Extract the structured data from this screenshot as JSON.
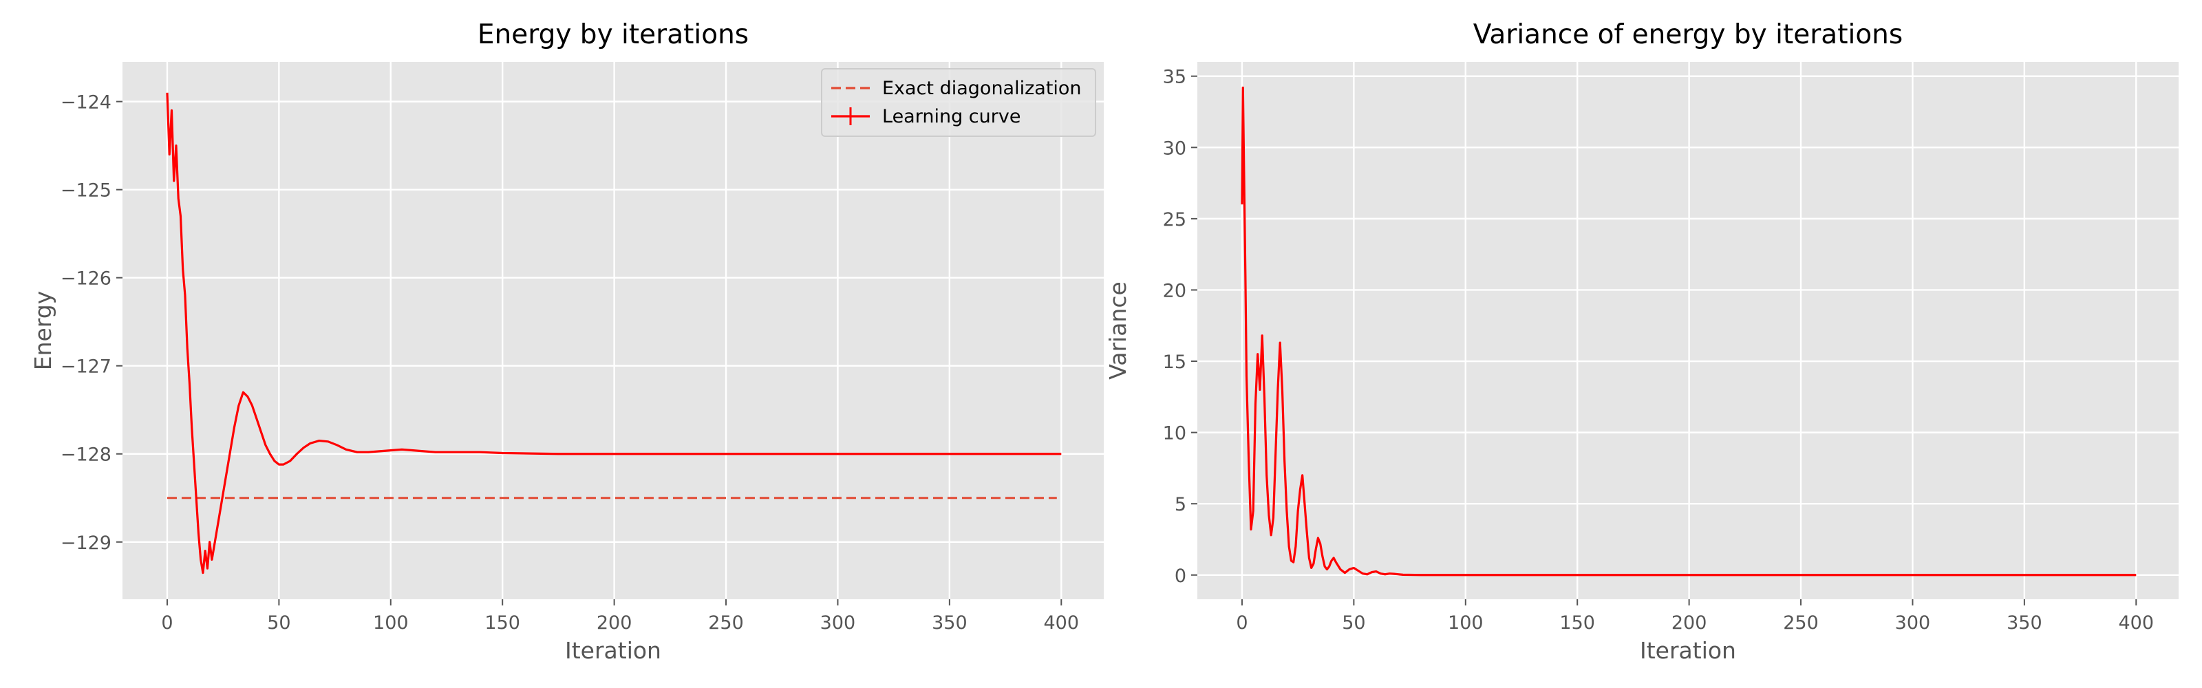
{
  "chart_data": [
    {
      "type": "line",
      "title": "Energy by iterations",
      "xlabel": "Iteration",
      "ylabel": "Energy",
      "xlim": [
        -20,
        419
      ],
      "ylim": [
        -129.65,
        -123.55
      ],
      "xticks": [
        0,
        50,
        100,
        150,
        200,
        250,
        300,
        350,
        400
      ],
      "yticks": [
        -129,
        -128,
        -127,
        -126,
        -125,
        -124
      ],
      "ytick_labels": [
        "−129",
        "−128",
        "−127",
        "−126",
        "−125",
        "−124"
      ],
      "grid": true,
      "legend_position": "top-right",
      "series": [
        {
          "name": "Exact diagonalization",
          "style": "dashed",
          "color": "#e24a33",
          "points": [
            [
              0,
              -128.5
            ],
            [
              398,
              -128.5
            ]
          ]
        },
        {
          "name": "Learning curve",
          "style": "solid-with-errorbars",
          "color": "#ff0000",
          "points": [
            [
              0,
              -123.9
            ],
            [
              1,
              -124.6
            ],
            [
              2,
              -124.1
            ],
            [
              3,
              -124.9
            ],
            [
              4,
              -124.5
            ],
            [
              5,
              -125.1
            ],
            [
              6,
              -125.3
            ],
            [
              7,
              -125.9
            ],
            [
              8,
              -126.2
            ],
            [
              9,
              -126.8
            ],
            [
              10,
              -127.2
            ],
            [
              11,
              -127.7
            ],
            [
              12,
              -128.1
            ],
            [
              13,
              -128.5
            ],
            [
              14,
              -128.9
            ],
            [
              15,
              -129.2
            ],
            [
              16,
              -129.35
            ],
            [
              17,
              -129.1
            ],
            [
              18,
              -129.3
            ],
            [
              19,
              -129.0
            ],
            [
              20,
              -129.2
            ],
            [
              22,
              -128.9
            ],
            [
              24,
              -128.6
            ],
            [
              26,
              -128.3
            ],
            [
              28,
              -128.0
            ],
            [
              30,
              -127.7
            ],
            [
              32,
              -127.45
            ],
            [
              34,
              -127.3
            ],
            [
              36,
              -127.35
            ],
            [
              38,
              -127.45
            ],
            [
              40,
              -127.6
            ],
            [
              42,
              -127.75
            ],
            [
              44,
              -127.9
            ],
            [
              46,
              -128.0
            ],
            [
              48,
              -128.08
            ],
            [
              50,
              -128.12
            ],
            [
              52,
              -128.12
            ],
            [
              55,
              -128.08
            ],
            [
              58,
              -128.0
            ],
            [
              61,
              -127.93
            ],
            [
              64,
              -127.88
            ],
            [
              68,
              -127.85
            ],
            [
              72,
              -127.86
            ],
            [
              76,
              -127.9
            ],
            [
              80,
              -127.95
            ],
            [
              85,
              -127.98
            ],
            [
              90,
              -127.98
            ],
            [
              95,
              -127.97
            ],
            [
              100,
              -127.96
            ],
            [
              105,
              -127.95
            ],
            [
              110,
              -127.96
            ],
            [
              120,
              -127.98
            ],
            [
              130,
              -127.98
            ],
            [
              140,
              -127.98
            ],
            [
              150,
              -127.99
            ],
            [
              175,
              -128.0
            ],
            [
              200,
              -128.0
            ],
            [
              250,
              -128.0
            ],
            [
              300,
              -128.0
            ],
            [
              350,
              -128.0
            ],
            [
              400,
              -128.0
            ]
          ]
        }
      ]
    },
    {
      "type": "line",
      "title": "Variance of energy by iterations",
      "xlabel": "Iteration",
      "ylabel": "Variance",
      "xlim": [
        -20,
        419
      ],
      "ylim": [
        -1.7,
        36.0
      ],
      "xticks": [
        0,
        50,
        100,
        150,
        200,
        250,
        300,
        350,
        400
      ],
      "yticks": [
        0,
        5,
        10,
        15,
        20,
        25,
        30,
        35
      ],
      "ytick_labels": [
        "0",
        "5",
        "10",
        "15",
        "20",
        "25",
        "30",
        "35"
      ],
      "grid": true,
      "series": [
        {
          "name": "",
          "style": "solid",
          "color": "#ff0000",
          "points": [
            [
              0,
              26.0
            ],
            [
              0.4,
              34.2
            ],
            [
              1,
              27.0
            ],
            [
              1.5,
              21.0
            ],
            [
              2,
              14.0
            ],
            [
              3,
              8.0
            ],
            [
              4,
              3.2
            ],
            [
              5,
              4.5
            ],
            [
              6,
              12.0
            ],
            [
              7,
              15.5
            ],
            [
              8,
              13.0
            ],
            [
              9,
              16.8
            ],
            [
              10,
              12.5
            ],
            [
              11,
              7.0
            ],
            [
              12,
              4.2
            ],
            [
              13,
              2.8
            ],
            [
              14,
              4.0
            ],
            [
              15,
              8.5
            ],
            [
              16,
              13.0
            ],
            [
              17,
              16.3
            ],
            [
              18,
              13.0
            ],
            [
              19,
              8.0
            ],
            [
              20,
              4.5
            ],
            [
              21,
              2.0
            ],
            [
              22,
              1.0
            ],
            [
              23,
              0.9
            ],
            [
              24,
              2.0
            ],
            [
              25,
              4.5
            ],
            [
              26,
              6.0
            ],
            [
              27,
              7.0
            ],
            [
              28,
              5.0
            ],
            [
              29,
              3.0
            ],
            [
              30,
              1.2
            ],
            [
              31,
              0.5
            ],
            [
              32,
              0.8
            ],
            [
              33,
              1.8
            ],
            [
              34,
              2.6
            ],
            [
              35,
              2.2
            ],
            [
              36,
              1.3
            ],
            [
              37,
              0.6
            ],
            [
              38,
              0.4
            ],
            [
              39,
              0.6
            ],
            [
              40,
              1.0
            ],
            [
              41,
              1.2
            ],
            [
              42,
              0.9
            ],
            [
              44,
              0.4
            ],
            [
              46,
              0.15
            ],
            [
              48,
              0.4
            ],
            [
              50,
              0.5
            ],
            [
              52,
              0.3
            ],
            [
              54,
              0.1
            ],
            [
              56,
              0.05
            ],
            [
              58,
              0.2
            ],
            [
              60,
              0.25
            ],
            [
              62,
              0.1
            ],
            [
              64,
              0.05
            ],
            [
              66,
              0.1
            ],
            [
              68,
              0.08
            ],
            [
              72,
              0.02
            ],
            [
              80,
              0.0
            ],
            [
              100,
              0.0
            ],
            [
              150,
              0.0
            ],
            [
              200,
              0.0
            ],
            [
              250,
              0.0
            ],
            [
              300,
              0.0
            ],
            [
              350,
              0.0
            ],
            [
              400,
              0.0
            ]
          ]
        }
      ]
    }
  ]
}
